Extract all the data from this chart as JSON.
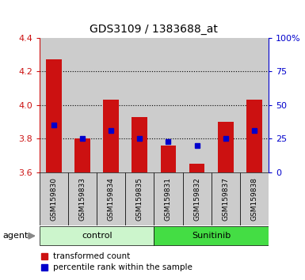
{
  "title": "GDS3109 / 1383688_at",
  "samples": [
    "GSM159830",
    "GSM159833",
    "GSM159834",
    "GSM159835",
    "GSM159831",
    "GSM159832",
    "GSM159837",
    "GSM159838"
  ],
  "bar_values": [
    4.27,
    3.8,
    4.03,
    3.93,
    3.76,
    3.65,
    3.9,
    4.03
  ],
  "blue_markers": [
    3.88,
    3.8,
    3.85,
    3.8,
    3.78,
    3.76,
    3.8,
    3.85
  ],
  "bar_bottom": 3.6,
  "ylim_left": [
    3.6,
    4.4
  ],
  "ylim_right": [
    0,
    100
  ],
  "yticks_left": [
    3.6,
    3.8,
    4.0,
    4.2,
    4.4
  ],
  "yticks_right": [
    0,
    25,
    50,
    75,
    100
  ],
  "ytick_labels_right": [
    "0",
    "25",
    "50",
    "75",
    "100%"
  ],
  "groups": [
    {
      "label": "control",
      "indices": [
        0,
        1,
        2,
        3
      ],
      "color": "#ccf5cc"
    },
    {
      "label": "Sunitinib",
      "indices": [
        4,
        5,
        6,
        7
      ],
      "color": "#44dd44"
    }
  ],
  "bar_color": "#cc1111",
  "blue_color": "#0000cc",
  "cell_bg_color": "#cccccc",
  "plot_bg": "#ffffff",
  "left_tick_color": "#cc1111",
  "right_tick_color": "#0000cc",
  "legend_items": [
    "transformed count",
    "percentile rank within the sample"
  ],
  "agent_label": "agent",
  "bar_width": 0.55
}
